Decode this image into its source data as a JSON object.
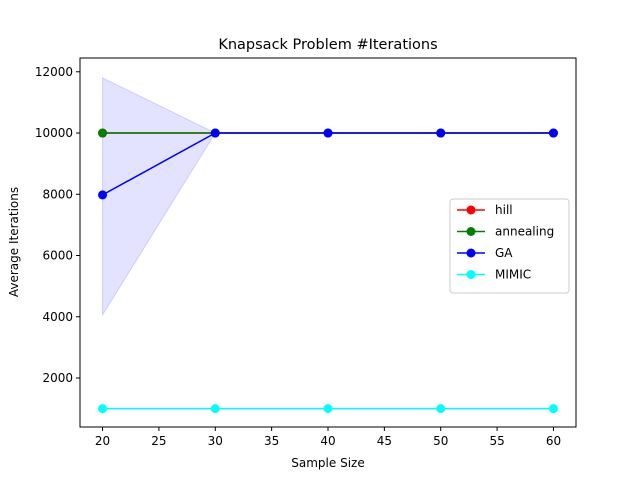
{
  "chart_data": {
    "type": "line",
    "title": "Knapsack Problem #Iterations",
    "xlabel": "Sample Size",
    "ylabel": "Average Iterations",
    "x": [
      20,
      30,
      40,
      50,
      60
    ],
    "xlim": [
      18,
      62
    ],
    "ylim": [
      400,
      12450
    ],
    "xticks": [
      20,
      25,
      30,
      35,
      40,
      45,
      50,
      55,
      60
    ],
    "yticks": [
      2000,
      4000,
      6000,
      8000,
      10000,
      12000
    ],
    "grid": false,
    "legend_position": "center-right",
    "series": [
      {
        "name": "hill",
        "color": "#ff0000",
        "values": [
          10000,
          10000,
          10000,
          10000,
          10000
        ]
      },
      {
        "name": "annealing",
        "color": "#008000",
        "values": [
          10000,
          10000,
          10000,
          10000,
          10000
        ]
      },
      {
        "name": "GA",
        "color": "#0000ff",
        "values": [
          7980,
          10000,
          10000,
          10000,
          10000
        ],
        "band_lower": [
          4060,
          10000,
          10000,
          10000,
          10000
        ],
        "band_upper": [
          11800,
          10000,
          10000,
          10000,
          10000
        ]
      },
      {
        "name": "MIMIC",
        "color": "#00ffff",
        "values": [
          1000,
          1000,
          1000,
          1000,
          1000
        ]
      }
    ]
  }
}
